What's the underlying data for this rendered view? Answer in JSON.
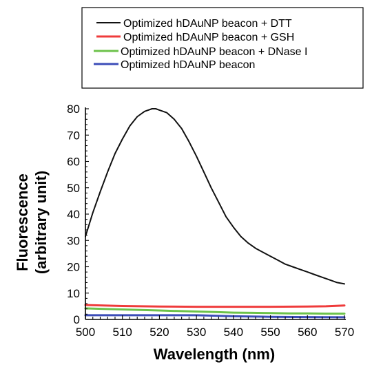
{
  "chart_data": {
    "type": "line",
    "title": "",
    "xlabel": "Wavelength (nm)",
    "ylabel_lines": [
      "Fluorescence",
      "(arbitrary unit)"
    ],
    "xlim": [
      500,
      570
    ],
    "ylim": [
      0,
      80
    ],
    "xticks": [
      500,
      510,
      520,
      530,
      540,
      550,
      560,
      570
    ],
    "yticks": [
      0,
      10,
      20,
      30,
      40,
      50,
      60,
      70,
      80
    ],
    "grid": false,
    "legend_position": "top",
    "series": [
      {
        "name": "Optimized hDAuNP beacon + DTT",
        "color": "#111111",
        "x": [
          500,
          502,
          504,
          506,
          508,
          510,
          512,
          514,
          516,
          518,
          519,
          520,
          522,
          524,
          526,
          528,
          530,
          532,
          534,
          536,
          538,
          540,
          542,
          544,
          546,
          548,
          550,
          552,
          554,
          556,
          558,
          560,
          562,
          564,
          566,
          568,
          570
        ],
        "y": [
          31.5,
          40.5,
          48.5,
          56,
          63,
          68.5,
          73.5,
          77,
          79,
          80,
          80,
          79.5,
          78.5,
          76,
          72.5,
          67.5,
          62,
          56,
          50,
          44.5,
          39,
          35,
          31.5,
          29,
          27,
          25.5,
          24,
          22.5,
          21,
          20,
          19,
          18,
          17,
          16,
          15,
          14,
          13.5
        ]
      },
      {
        "name": "Optimized hDAuNP beacon + GSH",
        "color": "#ef3b3b",
        "x": [
          500,
          510,
          520,
          530,
          540,
          550,
          560,
          565,
          570
        ],
        "y": [
          5.5,
          5.1,
          4.9,
          4.8,
          4.8,
          4.8,
          4.9,
          5.0,
          5.3
        ]
      },
      {
        "name": "Optimized hDAuNP beacon + DNase I",
        "color": "#6cc24a",
        "x": [
          500,
          505,
          510,
          515,
          520,
          525,
          530,
          535,
          540,
          545,
          550,
          555,
          560,
          565,
          570
        ],
        "y": [
          4.2,
          4.0,
          3.8,
          3.6,
          3.4,
          3.2,
          3.0,
          2.8,
          2.6,
          2.5,
          2.4,
          2.3,
          2.3,
          2.2,
          2.2
        ]
      },
      {
        "name": "Optimized hDAuNP beacon",
        "color": "#3b4cb8",
        "x": [
          500,
          510,
          520,
          530,
          535,
          540,
          550,
          560,
          570
        ],
        "y": [
          1.6,
          1.6,
          1.6,
          1.6,
          1.4,
          1.2,
          1.0,
          0.9,
          0.8
        ]
      }
    ]
  }
}
